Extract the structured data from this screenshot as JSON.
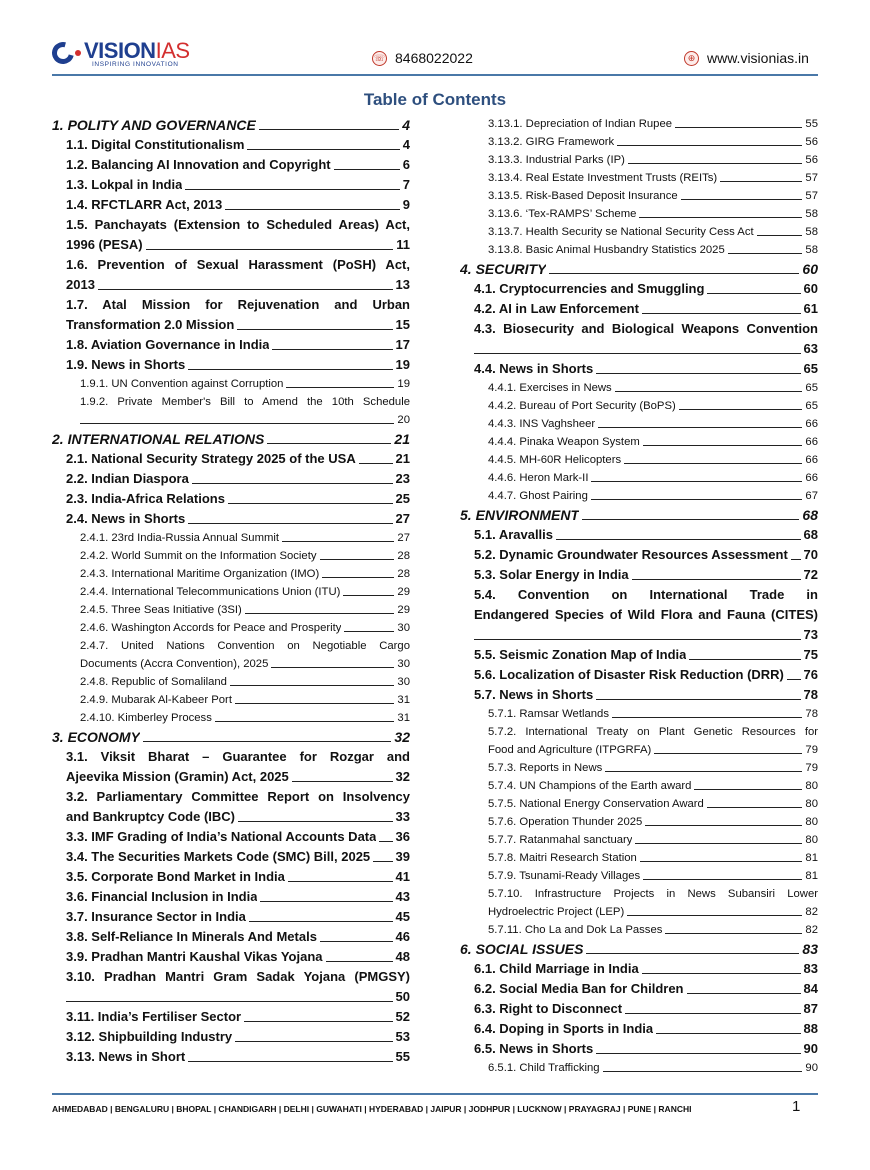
{
  "header": {
    "logo_text_primary": "VISION",
    "logo_text_secondary": "IAS",
    "logo_tagline": "INSPIRING INNOVATION",
    "phone": "8468022022",
    "phone_icon": "phone-icon",
    "website": "www.visionias.in",
    "website_icon": "globe-icon",
    "accent_color": "#2e4f7e"
  },
  "title": "Table of Contents",
  "left_column": [
    {
      "level": 1,
      "lines": [
        "1. POLITY AND GOVERNANCE"
      ],
      "page": "4"
    },
    {
      "level": 2,
      "lines": [
        "1.1. Digital Constitutionalism"
      ],
      "page": "4"
    },
    {
      "level": 2,
      "lines": [
        "1.2. Balancing AI Innovation and Copyright"
      ],
      "page": "6"
    },
    {
      "level": 2,
      "lines": [
        "1.3. Lokpal in India"
      ],
      "page": "7"
    },
    {
      "level": 2,
      "lines": [
        "1.4. RFCTLARR Act, 2013"
      ],
      "page": "9"
    },
    {
      "level": 2,
      "lines": [
        "1.5. Panchayats (Extension to Scheduled Areas) Act,",
        "1996 (PESA)"
      ],
      "page": "11"
    },
    {
      "level": 2,
      "lines": [
        "1.6. Prevention of Sexual Harassment (PoSH) Act,",
        "2013"
      ],
      "page": "13"
    },
    {
      "level": 2,
      "lines": [
        "1.7. Atal Mission for Rejuvenation and Urban",
        "Transformation 2.0 Mission"
      ],
      "page": "15"
    },
    {
      "level": 2,
      "lines": [
        "1.8. Aviation Governance in India"
      ],
      "page": "17"
    },
    {
      "level": 2,
      "lines": [
        "1.9. News in Shorts"
      ],
      "page": "19"
    },
    {
      "level": 3,
      "lines": [
        "1.9.1. UN Convention against Corruption"
      ],
      "page": "19"
    },
    {
      "level": 3,
      "lines": [
        "1.9.2. Private Member's Bill to Amend the 10th Schedule",
        ""
      ],
      "page": "20"
    },
    {
      "level": 1,
      "lines": [
        "2. INTERNATIONAL RELATIONS"
      ],
      "page": "21"
    },
    {
      "level": 2,
      "lines": [
        "2.1. National Security Strategy 2025 of the USA"
      ],
      "page": "21"
    },
    {
      "level": 2,
      "lines": [
        "2.2. Indian Diaspora"
      ],
      "page": "23"
    },
    {
      "level": 2,
      "lines": [
        "2.3. India-Africa Relations"
      ],
      "page": "25"
    },
    {
      "level": 2,
      "lines": [
        "2.4. News in Shorts"
      ],
      "page": "27"
    },
    {
      "level": 3,
      "lines": [
        "2.4.1. 23rd India-Russia Annual Summit"
      ],
      "page": "27"
    },
    {
      "level": 3,
      "lines": [
        "2.4.2. World Summit on the Information Society"
      ],
      "page": "28"
    },
    {
      "level": 3,
      "lines": [
        "2.4.3. International Maritime Organization (IMO)"
      ],
      "page": "28"
    },
    {
      "level": 3,
      "lines": [
        "2.4.4. International Telecommunications Union (ITU)"
      ],
      "page": "29"
    },
    {
      "level": 3,
      "lines": [
        "2.4.5. Three Seas Initiative (3SI)"
      ],
      "page": "29"
    },
    {
      "level": 3,
      "lines": [
        "2.4.6. Washington Accords for Peace and Prosperity"
      ],
      "page": "30"
    },
    {
      "level": 3,
      "lines": [
        "2.4.7. United Nations Convention on Negotiable Cargo",
        "Documents (Accra Convention), 2025"
      ],
      "page": "30"
    },
    {
      "level": 3,
      "lines": [
        "2.4.8. Republic of Somaliland"
      ],
      "page": "30"
    },
    {
      "level": 3,
      "lines": [
        "2.4.9. Mubarak Al-Kabeer Port"
      ],
      "page": "31"
    },
    {
      "level": 3,
      "lines": [
        "2.4.10. Kimberley Process"
      ],
      "page": "31"
    },
    {
      "level": 1,
      "lines": [
        "3. ECONOMY"
      ],
      "page": "32"
    },
    {
      "level": 2,
      "lines": [
        "3.1. Viksit Bharat – Guarantee for Rozgar and",
        "Ajeevika Mission (Gramin) Act, 2025"
      ],
      "page": "32"
    },
    {
      "level": 2,
      "lines": [
        "3.2. Parliamentary Committee Report on Insolvency",
        "and Bankruptcy Code (IBC)"
      ],
      "page": "33"
    },
    {
      "level": 2,
      "lines": [
        "3.3. IMF Grading of India’s National Accounts Data"
      ],
      "page": "36"
    },
    {
      "level": 2,
      "lines": [
        "3.4. The Securities Markets Code (SMC) Bill, 2025"
      ],
      "page": "39"
    },
    {
      "level": 2,
      "lines": [
        "3.5. Corporate Bond Market in India"
      ],
      "page": "41"
    },
    {
      "level": 2,
      "lines": [
        "3.6. Financial Inclusion in India"
      ],
      "page": "43"
    },
    {
      "level": 2,
      "lines": [
        "3.7. Insurance Sector in India"
      ],
      "page": "45"
    },
    {
      "level": 2,
      "lines": [
        "3.8. Self-Reliance In Minerals And Metals"
      ],
      "page": "46"
    },
    {
      "level": 2,
      "lines": [
        "3.9. Pradhan Mantri Kaushal Vikas Yojana"
      ],
      "page": "48"
    },
    {
      "level": 2,
      "lines": [
        "3.10. Pradhan Mantri Gram Sadak Yojana (PMGSY)",
        ""
      ],
      "page": "50"
    },
    {
      "level": 2,
      "lines": [
        "3.11. India’s Fertiliser Sector"
      ],
      "page": "52"
    },
    {
      "level": 2,
      "lines": [
        "3.12. Shipbuilding Industry"
      ],
      "page": "53"
    },
    {
      "level": 2,
      "lines": [
        "3.13. News in Short"
      ],
      "page": "55"
    }
  ],
  "right_column": [
    {
      "level": 3,
      "lines": [
        "3.13.1. Depreciation of Indian Rupee"
      ],
      "page": "55"
    },
    {
      "level": 3,
      "lines": [
        "3.13.2. GIRG Framework"
      ],
      "page": "56"
    },
    {
      "level": 3,
      "lines": [
        "3.13.3. Industrial Parks (IP)"
      ],
      "page": "56"
    },
    {
      "level": 3,
      "lines": [
        "3.13.4. Real Estate Investment Trusts (REITs)"
      ],
      "page": "57"
    },
    {
      "level": 3,
      "lines": [
        "3.13.5. Risk-Based Deposit Insurance"
      ],
      "page": "57"
    },
    {
      "level": 3,
      "lines": [
        "3.13.6. ‘Tex-RAMPS’ Scheme"
      ],
      "page": "58"
    },
    {
      "level": 3,
      "lines": [
        "3.13.7. Health Security se National Security Cess Act"
      ],
      "page": "58"
    },
    {
      "level": 3,
      "lines": [
        "3.13.8. Basic Animal Husbandry Statistics 2025"
      ],
      "page": "58"
    },
    {
      "level": 1,
      "lines": [
        "4. SECURITY"
      ],
      "page": "60"
    },
    {
      "level": 2,
      "lines": [
        "4.1. Cryptocurrencies and Smuggling"
      ],
      "page": "60"
    },
    {
      "level": 2,
      "lines": [
        "4.2. AI in Law Enforcement"
      ],
      "page": "61"
    },
    {
      "level": 2,
      "lines": [
        "4.3. Biosecurity and Biological Weapons Convention",
        ""
      ],
      "page": "63"
    },
    {
      "level": 2,
      "lines": [
        "4.4. News in Shorts"
      ],
      "page": "65"
    },
    {
      "level": 3,
      "lines": [
        "4.4.1. Exercises in News"
      ],
      "page": "65"
    },
    {
      "level": 3,
      "lines": [
        "4.4.2. Bureau of Port Security (BoPS)"
      ],
      "page": "65"
    },
    {
      "level": 3,
      "lines": [
        "4.4.3. INS Vaghsheer"
      ],
      "page": "66"
    },
    {
      "level": 3,
      "lines": [
        "4.4.4. Pinaka Weapon System"
      ],
      "page": "66"
    },
    {
      "level": 3,
      "lines": [
        "4.4.5. MH-60R Helicopters"
      ],
      "page": "66"
    },
    {
      "level": 3,
      "lines": [
        "4.4.6. Heron Mark-II"
      ],
      "page": "66"
    },
    {
      "level": 3,
      "lines": [
        "4.4.7. Ghost Pairing"
      ],
      "page": "67"
    },
    {
      "level": 1,
      "lines": [
        "5. ENVIRONMENT"
      ],
      "page": "68"
    },
    {
      "level": 2,
      "lines": [
        "5.1. Aravallis"
      ],
      "page": "68"
    },
    {
      "level": 2,
      "lines": [
        "5.2. Dynamic Groundwater Resources Assessment"
      ],
      "page": "70"
    },
    {
      "level": 2,
      "lines": [
        "5.3. Solar Energy in India"
      ],
      "page": "72"
    },
    {
      "level": 2,
      "lines": [
        "5.4. Convention on International Trade in",
        "Endangered Species of Wild Flora and Fauna (CITES)",
        ""
      ],
      "page": "73"
    },
    {
      "level": 2,
      "lines": [
        "5.5. Seismic Zonation Map of India"
      ],
      "page": "75"
    },
    {
      "level": 2,
      "lines": [
        "5.6. Localization of Disaster Risk Reduction (DRR)"
      ],
      "page": "76"
    },
    {
      "level": 2,
      "lines": [
        "5.7. News in Shorts"
      ],
      "page": "78"
    },
    {
      "level": 3,
      "lines": [
        "5.7.1. Ramsar Wetlands"
      ],
      "page": "78"
    },
    {
      "level": 3,
      "lines": [
        "5.7.2. International Treaty on Plant Genetic Resources for",
        "Food and Agriculture (ITPGRFA)"
      ],
      "page": "79"
    },
    {
      "level": 3,
      "lines": [
        "5.7.3. Reports in News"
      ],
      "page": "79"
    },
    {
      "level": 3,
      "lines": [
        "5.7.4. UN Champions of the Earth award"
      ],
      "page": "80"
    },
    {
      "level": 3,
      "lines": [
        "5.7.5. National Energy Conservation Award"
      ],
      "page": "80"
    },
    {
      "level": 3,
      "lines": [
        "5.7.6. Operation Thunder 2025"
      ],
      "page": "80"
    },
    {
      "level": 3,
      "lines": [
        "5.7.7. Ratanmahal sanctuary"
      ],
      "page": "80"
    },
    {
      "level": 3,
      "lines": [
        "5.7.8. Maitri Research Station"
      ],
      "page": "81"
    },
    {
      "level": 3,
      "lines": [
        "5.7.9. Tsunami-Ready Villages"
      ],
      "page": "81"
    },
    {
      "level": 3,
      "lines": [
        "5.7.10. Infrastructure Projects in News Subansiri Lower",
        "Hydroelectric Project (LEP)"
      ],
      "page": "82"
    },
    {
      "level": 3,
      "lines": [
        "5.7.11. Cho La and Dok La Passes"
      ],
      "page": "82"
    },
    {
      "level": 1,
      "lines": [
        "6. SOCIAL ISSUES"
      ],
      "page": "83"
    },
    {
      "level": 2,
      "lines": [
        "6.1. Child Marriage in India"
      ],
      "page": "83"
    },
    {
      "level": 2,
      "lines": [
        "6.2. Social Media Ban for Children"
      ],
      "page": "84"
    },
    {
      "level": 2,
      "lines": [
        "6.3. Right to Disconnect"
      ],
      "page": "87"
    },
    {
      "level": 2,
      "lines": [
        "6.4. Doping in Sports in India"
      ],
      "page": "88"
    },
    {
      "level": 2,
      "lines": [
        "6.5. News in Shorts"
      ],
      "page": "90"
    },
    {
      "level": 3,
      "lines": [
        "6.5.1. Child Trafficking"
      ],
      "page": "90"
    }
  ],
  "footer": {
    "cities": "AHMEDABAD | BENGALURU | BHOPAL | CHANDIGARH | DELHI | GUWAHATI | HYDERABAD | JAIPUR | JODHPUR | LUCKNOW | PRAYAGRAJ | PUNE | RANCHI",
    "page_number": "1"
  }
}
